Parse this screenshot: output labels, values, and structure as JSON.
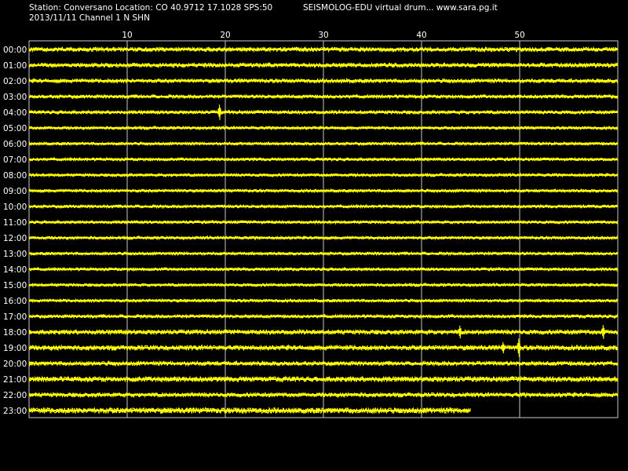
{
  "header": {
    "station_line": "Station: Conversano Location: CO 40.9712 17.1028 SPS:50",
    "date_line": "2013/11/11  Channel 1 N SHN",
    "software_line": "SEISMOLOG-EDU virtual drum... www.sara.pg.it"
  },
  "colors": {
    "background": "#000000",
    "trace": "#ffff00",
    "grid": "#c8c8c8",
    "text": "#ffffff"
  },
  "chart_data": {
    "type": "line",
    "title": "",
    "xlabel": "",
    "ylabel": "",
    "x_unit": "minutes",
    "xlim": [
      0,
      60
    ],
    "x_ticks": [
      10,
      20,
      30,
      40,
      50
    ],
    "x_tick_labels": [
      "10",
      "20",
      "30",
      "40",
      "50"
    ],
    "grid": true,
    "row_labels": [
      "00:00",
      "01:00",
      "02:00",
      "03:00",
      "04:00",
      "05:00",
      "06:00",
      "07:00",
      "08:00",
      "09:00",
      "10:00",
      "11:00",
      "12:00",
      "13:00",
      "14:00",
      "15:00",
      "16:00",
      "17:00",
      "18:00",
      "19:00",
      "20:00",
      "21:00",
      "22:00",
      "23:00"
    ],
    "row_end_minutes": [
      60,
      60,
      60,
      60,
      60,
      60,
      60,
      60,
      60,
      60,
      60,
      60,
      60,
      60,
      60,
      60,
      60,
      60,
      60,
      60,
      60,
      60,
      60,
      45
    ],
    "noise_level": [
      0.3,
      0.3,
      0.28,
      0.25,
      0.25,
      0.22,
      0.22,
      0.22,
      0.22,
      0.22,
      0.22,
      0.22,
      0.22,
      0.22,
      0.22,
      0.22,
      0.22,
      0.24,
      0.32,
      0.34,
      0.3,
      0.36,
      0.3,
      0.4
    ],
    "events": [
      {
        "row": "04:00",
        "minute": 19.4,
        "amplitude": 1.1
      },
      {
        "row": "18:00",
        "minute": 43.9,
        "amplitude": 0.9
      },
      {
        "row": "18:00",
        "minute": 58.5,
        "amplitude": 1.0
      },
      {
        "row": "19:00",
        "minute": 48.3,
        "amplitude": 0.8
      },
      {
        "row": "19:00",
        "minute": 49.9,
        "amplitude": 1.3
      }
    ]
  }
}
